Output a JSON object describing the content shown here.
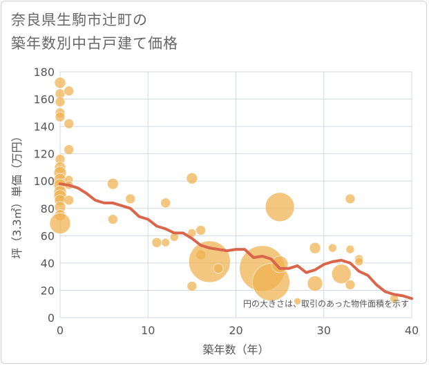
{
  "title_lines": [
    "奈良県生駒市辻町の",
    "築年数別中古戸建て価格"
  ],
  "chart_data": {
    "type": "scatter",
    "title": "奈良県生駒市辻町の築年数別中古戸建て価格",
    "xlabel": "築年数（年）",
    "ylabel": "坪（3.3㎡）単価（万円）",
    "xlim": [
      0,
      40
    ],
    "ylim": [
      0,
      180
    ],
    "x_ticks": [
      0,
      10,
      20,
      30,
      40
    ],
    "y_ticks": [
      0,
      20,
      40,
      60,
      80,
      100,
      120,
      140,
      160,
      180
    ],
    "grid": true,
    "note": "円の大きさは、取引のあった物件面積を示す",
    "colors": {
      "bubble": "#f0b14f",
      "trend": "#d9654a",
      "grid": "#d0d8e2"
    },
    "bubbles": [
      {
        "x": 0,
        "y": 172,
        "s": 8
      },
      {
        "x": 0,
        "y": 164,
        "s": 7
      },
      {
        "x": 0,
        "y": 158,
        "s": 7
      },
      {
        "x": 0,
        "y": 150,
        "s": 7
      },
      {
        "x": 0,
        "y": 147,
        "s": 7
      },
      {
        "x": 0,
        "y": 116,
        "s": 7
      },
      {
        "x": 0,
        "y": 110,
        "s": 8
      },
      {
        "x": 0,
        "y": 106,
        "s": 9
      },
      {
        "x": 0,
        "y": 101,
        "s": 9
      },
      {
        "x": 0,
        "y": 97,
        "s": 9
      },
      {
        "x": 0,
        "y": 92,
        "s": 9
      },
      {
        "x": 0,
        "y": 89,
        "s": 9
      },
      {
        "x": 0,
        "y": 86,
        "s": 8
      },
      {
        "x": 0,
        "y": 81,
        "s": 8
      },
      {
        "x": 0,
        "y": 75,
        "s": 8
      },
      {
        "x": 0,
        "y": 69,
        "s": 15
      },
      {
        "x": 1,
        "y": 166,
        "s": 7
      },
      {
        "x": 1,
        "y": 142,
        "s": 7
      },
      {
        "x": 1,
        "y": 123,
        "s": 7
      },
      {
        "x": 1,
        "y": 101,
        "s": 6
      },
      {
        "x": 1,
        "y": 97,
        "s": 6
      },
      {
        "x": 1,
        "y": 86,
        "s": 7
      },
      {
        "x": 6,
        "y": 98,
        "s": 8
      },
      {
        "x": 6,
        "y": 72,
        "s": 7
      },
      {
        "x": 8,
        "y": 87,
        "s": 7
      },
      {
        "x": 11,
        "y": 55,
        "s": 7
      },
      {
        "x": 12,
        "y": 84,
        "s": 7
      },
      {
        "x": 12,
        "y": 55,
        "s": 6
      },
      {
        "x": 13,
        "y": 59,
        "s": 6
      },
      {
        "x": 15,
        "y": 102,
        "s": 8
      },
      {
        "x": 15,
        "y": 62,
        "s": 6
      },
      {
        "x": 15,
        "y": 23,
        "s": 7
      },
      {
        "x": 16,
        "y": 64,
        "s": 7
      },
      {
        "x": 16,
        "y": 46,
        "s": 7
      },
      {
        "x": 17,
        "y": 41,
        "s": 30
      },
      {
        "x": 18,
        "y": 36,
        "s": 7
      },
      {
        "x": 23,
        "y": 36,
        "s": 33
      },
      {
        "x": 24,
        "y": 26,
        "s": 27
      },
      {
        "x": 25,
        "y": 39,
        "s": 12
      },
      {
        "x": 25,
        "y": 81,
        "s": 21
      },
      {
        "x": 27,
        "y": 12,
        "s": 5
      },
      {
        "x": 29,
        "y": 51,
        "s": 8
      },
      {
        "x": 29,
        "y": 25,
        "s": 11
      },
      {
        "x": 31,
        "y": 51,
        "s": 6
      },
      {
        "x": 32,
        "y": 32,
        "s": 14
      },
      {
        "x": 33,
        "y": 87,
        "s": 7
      },
      {
        "x": 33,
        "y": 50,
        "s": 6
      },
      {
        "x": 33,
        "y": 24,
        "s": 7
      },
      {
        "x": 34,
        "y": 43,
        "s": 6
      },
      {
        "x": 34,
        "y": 41,
        "s": 6
      },
      {
        "x": 38,
        "y": 14,
        "s": 6
      }
    ],
    "trend": {
      "x": [
        0,
        1,
        2,
        3,
        4,
        5,
        6,
        7,
        8,
        9,
        10,
        11,
        12,
        13,
        14,
        15,
        16,
        17,
        18,
        19,
        20,
        21,
        22,
        23,
        24,
        25,
        26,
        27,
        28,
        29,
        30,
        31,
        32,
        33,
        34,
        35,
        36,
        37,
        38,
        39,
        40
      ],
      "y": [
        98,
        97,
        95,
        91,
        86,
        84,
        84,
        82,
        80,
        74,
        72,
        67,
        65,
        62,
        62,
        58,
        53,
        51,
        50,
        49,
        50,
        50,
        44,
        45,
        43,
        36,
        36,
        38,
        33,
        35,
        39,
        41,
        42,
        40,
        34,
        31,
        24,
        19,
        17,
        16,
        14
      ]
    }
  }
}
